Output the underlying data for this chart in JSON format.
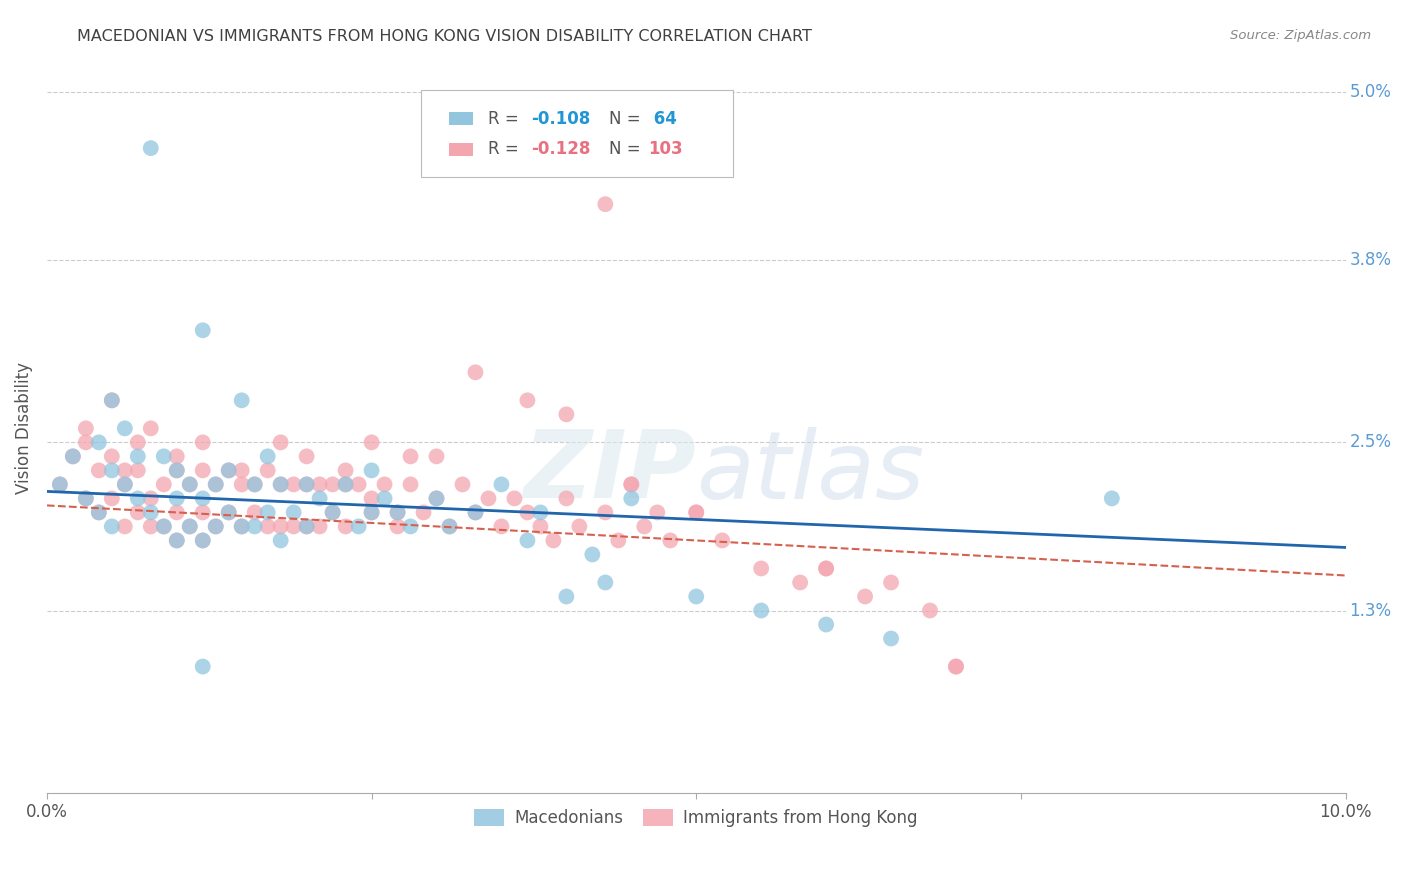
{
  "title": "MACEDONIAN VS IMMIGRANTS FROM HONG KONG VISION DISABILITY CORRELATION CHART",
  "source": "Source: ZipAtlas.com",
  "ylabel": "Vision Disability",
  "watermark": "ZIPatlas",
  "xlim": [
    0.0,
    0.1
  ],
  "ylim": [
    0.0,
    0.052
  ],
  "ytick_labels_right": [
    "5.0%",
    "3.8%",
    "2.5%",
    "1.3%"
  ],
  "ytick_positions_right": [
    0.05,
    0.038,
    0.025,
    0.013
  ],
  "blue_color": "#92c5de",
  "pink_color": "#f4a6b0",
  "line_blue": "#2166ac",
  "line_pink": "#d6604d",
  "background_color": "#ffffff",
  "macedonians_label": "Macedonians",
  "hk_label": "Immigrants from Hong Kong",
  "blue_trend": [
    0.0,
    0.1,
    0.0215,
    0.0175
  ],
  "pink_trend": [
    0.0,
    0.1,
    0.0205,
    0.0155
  ],
  "blue_x": [
    0.001,
    0.002,
    0.003,
    0.004,
    0.004,
    0.005,
    0.005,
    0.005,
    0.006,
    0.006,
    0.007,
    0.007,
    0.008,
    0.008,
    0.009,
    0.009,
    0.01,
    0.01,
    0.01,
    0.011,
    0.011,
    0.012,
    0.012,
    0.012,
    0.013,
    0.013,
    0.014,
    0.014,
    0.015,
    0.015,
    0.016,
    0.016,
    0.017,
    0.017,
    0.018,
    0.018,
    0.019,
    0.02,
    0.02,
    0.021,
    0.022,
    0.023,
    0.024,
    0.025,
    0.025,
    0.026,
    0.027,
    0.028,
    0.03,
    0.031,
    0.033,
    0.035,
    0.037,
    0.038,
    0.04,
    0.042,
    0.043,
    0.045,
    0.05,
    0.055,
    0.06,
    0.065,
    0.082,
    0.012
  ],
  "blue_y": [
    0.022,
    0.024,
    0.021,
    0.025,
    0.02,
    0.023,
    0.019,
    0.028,
    0.022,
    0.026,
    0.021,
    0.024,
    0.046,
    0.02,
    0.024,
    0.019,
    0.023,
    0.021,
    0.018,
    0.022,
    0.019,
    0.033,
    0.021,
    0.018,
    0.022,
    0.019,
    0.023,
    0.02,
    0.028,
    0.019,
    0.022,
    0.019,
    0.024,
    0.02,
    0.022,
    0.018,
    0.02,
    0.022,
    0.019,
    0.021,
    0.02,
    0.022,
    0.019,
    0.023,
    0.02,
    0.021,
    0.02,
    0.019,
    0.021,
    0.019,
    0.02,
    0.022,
    0.018,
    0.02,
    0.014,
    0.017,
    0.015,
    0.021,
    0.014,
    0.013,
    0.012,
    0.011,
    0.021,
    0.009
  ],
  "pink_x": [
    0.001,
    0.002,
    0.003,
    0.003,
    0.004,
    0.004,
    0.005,
    0.005,
    0.005,
    0.006,
    0.006,
    0.007,
    0.007,
    0.007,
    0.008,
    0.008,
    0.009,
    0.009,
    0.01,
    0.01,
    0.01,
    0.011,
    0.011,
    0.012,
    0.012,
    0.012,
    0.013,
    0.013,
    0.014,
    0.014,
    0.015,
    0.015,
    0.016,
    0.016,
    0.017,
    0.017,
    0.018,
    0.018,
    0.019,
    0.019,
    0.02,
    0.02,
    0.021,
    0.021,
    0.022,
    0.022,
    0.023,
    0.023,
    0.024,
    0.025,
    0.025,
    0.026,
    0.027,
    0.027,
    0.028,
    0.029,
    0.03,
    0.031,
    0.032,
    0.033,
    0.034,
    0.035,
    0.036,
    0.037,
    0.038,
    0.039,
    0.04,
    0.041,
    0.043,
    0.044,
    0.045,
    0.046,
    0.047,
    0.048,
    0.05,
    0.052,
    0.055,
    0.058,
    0.06,
    0.063,
    0.065,
    0.068,
    0.07,
    0.003,
    0.006,
    0.008,
    0.01,
    0.012,
    0.015,
    0.018,
    0.02,
    0.023,
    0.025,
    0.028,
    0.03,
    0.033,
    0.037,
    0.04,
    0.045,
    0.05,
    0.043,
    0.06,
    0.07
  ],
  "pink_y": [
    0.022,
    0.024,
    0.021,
    0.026,
    0.023,
    0.02,
    0.024,
    0.021,
    0.028,
    0.022,
    0.019,
    0.023,
    0.02,
    0.025,
    0.021,
    0.019,
    0.022,
    0.019,
    0.023,
    0.02,
    0.018,
    0.022,
    0.019,
    0.023,
    0.02,
    0.018,
    0.022,
    0.019,
    0.023,
    0.02,
    0.022,
    0.019,
    0.022,
    0.02,
    0.023,
    0.019,
    0.022,
    0.019,
    0.022,
    0.019,
    0.022,
    0.019,
    0.022,
    0.019,
    0.022,
    0.02,
    0.022,
    0.019,
    0.022,
    0.02,
    0.021,
    0.022,
    0.02,
    0.019,
    0.022,
    0.02,
    0.021,
    0.019,
    0.022,
    0.02,
    0.021,
    0.019,
    0.021,
    0.02,
    0.019,
    0.018,
    0.021,
    0.019,
    0.02,
    0.018,
    0.022,
    0.019,
    0.02,
    0.018,
    0.02,
    0.018,
    0.016,
    0.015,
    0.016,
    0.014,
    0.015,
    0.013,
    0.009,
    0.025,
    0.023,
    0.026,
    0.024,
    0.025,
    0.023,
    0.025,
    0.024,
    0.023,
    0.025,
    0.024,
    0.024,
    0.03,
    0.028,
    0.027,
    0.022,
    0.02,
    0.042,
    0.016,
    0.009
  ]
}
